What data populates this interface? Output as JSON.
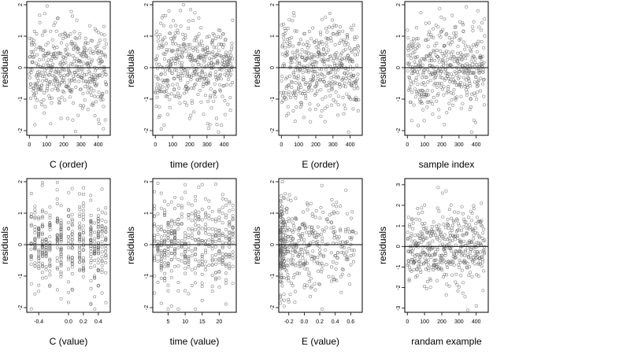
{
  "figure": {
    "background": "#ffffff",
    "point_color": "#666666",
    "zero_line_color": "#000000"
  },
  "chart_data": [
    {
      "type": "scatter",
      "row": 0,
      "col": 0,
      "xlabel": "C (order)",
      "ylabel": "residuals",
      "xlim": [
        -15,
        470
      ],
      "ylim": [
        -2.15,
        2.1
      ],
      "xticks": [
        0,
        100,
        200,
        300,
        400
      ],
      "yticks": [
        -2,
        -1,
        0,
        1,
        2
      ],
      "reference_line_y": 0,
      "x_kind": "index",
      "seed": 11
    },
    {
      "type": "scatter",
      "row": 0,
      "col": 1,
      "xlabel": "time (order)",
      "ylabel": "residuals",
      "xlim": [
        -15,
        470
      ],
      "ylim": [
        -2.15,
        2.1
      ],
      "xticks": [
        0,
        100,
        200,
        300,
        400
      ],
      "yticks": [
        -2,
        -1,
        0,
        1,
        2
      ],
      "reference_line_y": 0,
      "x_kind": "index",
      "seed": 23
    },
    {
      "type": "scatter",
      "row": 0,
      "col": 2,
      "xlabel": "E (order)",
      "ylabel": "residuals",
      "xlim": [
        -15,
        470
      ],
      "ylim": [
        -2.15,
        2.1
      ],
      "xticks": [
        0,
        100,
        200,
        300,
        400
      ],
      "yticks": [
        -2,
        -1,
        0,
        1,
        2
      ],
      "reference_line_y": 0,
      "x_kind": "index",
      "seed": 37
    },
    {
      "type": "scatter",
      "row": 0,
      "col": 3,
      "xlabel": "sample index",
      "ylabel": "residuals",
      "xlim": [
        -15,
        470
      ],
      "ylim": [
        -2.15,
        2.1
      ],
      "xticks": [
        0,
        100,
        200,
        300,
        400
      ],
      "yticks": [
        -2,
        -1,
        0,
        1,
        2
      ],
      "reference_line_y": 0,
      "x_kind": "index",
      "seed": 41
    },
    {
      "type": "scatter",
      "row": 1,
      "col": 0,
      "xlabel": "C (value)",
      "ylabel": "residuals",
      "xlim": [
        -0.56,
        0.56
      ],
      "ylim": [
        -2.15,
        2.1
      ],
      "xticks": [
        -0.4,
        0.0,
        0.2,
        0.4
      ],
      "xticklabels": [
        "-0.4",
        "0.0",
        "0.2",
        "0.4"
      ],
      "yticks": [
        -2,
        -1,
        0,
        1,
        2
      ],
      "reference_line_y": 0,
      "x_kind": "levels",
      "x_levels": [
        -0.5,
        -0.45,
        -0.4,
        -0.35,
        -0.3,
        -0.25,
        -0.15,
        -0.1,
        0.0,
        0.05,
        0.15,
        0.2,
        0.3,
        0.35,
        0.4,
        0.45,
        0.5
      ],
      "seed": 53
    },
    {
      "type": "scatter",
      "row": 1,
      "col": 1,
      "xlabel": "time (value)",
      "ylabel": "residuals",
      "xlim": [
        0.5,
        25
      ],
      "ylim": [
        -2.15,
        2.1
      ],
      "xticks": [
        5,
        10,
        15,
        20
      ],
      "yticks": [
        -2,
        -1,
        0,
        1,
        2
      ],
      "reference_line_y": 0,
      "x_kind": "levels",
      "x_levels": [
        1,
        2,
        3,
        4,
        5,
        6,
        7,
        8,
        9,
        10,
        11,
        12,
        13,
        14,
        15,
        16,
        17,
        18,
        19,
        20,
        21,
        22,
        23,
        24
      ],
      "seed": 67
    },
    {
      "type": "scatter",
      "row": 1,
      "col": 2,
      "xlabel": "E (value)",
      "ylabel": "residuals",
      "xlim": [
        -0.33,
        0.75
      ],
      "ylim": [
        -2.15,
        2.1
      ],
      "xticks": [
        -0.2,
        0.0,
        0.2,
        0.4,
        0.6
      ],
      "xticklabels": [
        "-0.2",
        "0.0",
        "0.2",
        "0.4",
        "0.6"
      ],
      "yticks": [
        -2,
        -1,
        0,
        1,
        2
      ],
      "reference_line_y": 0,
      "x_kind": "skewed",
      "seed": 71
    },
    {
      "type": "scatter",
      "row": 1,
      "col": 3,
      "xlabel": "randam example",
      "ylabel": "residuals",
      "xlim": [
        -15,
        470
      ],
      "ylim": [
        -3.2,
        3.3
      ],
      "xticks": [
        0,
        100,
        200,
        300,
        400
      ],
      "yticks": [
        -3,
        -2,
        -1,
        0,
        1,
        2,
        3
      ],
      "reference_line_y": 0,
      "x_kind": "index",
      "seed": 89
    }
  ]
}
